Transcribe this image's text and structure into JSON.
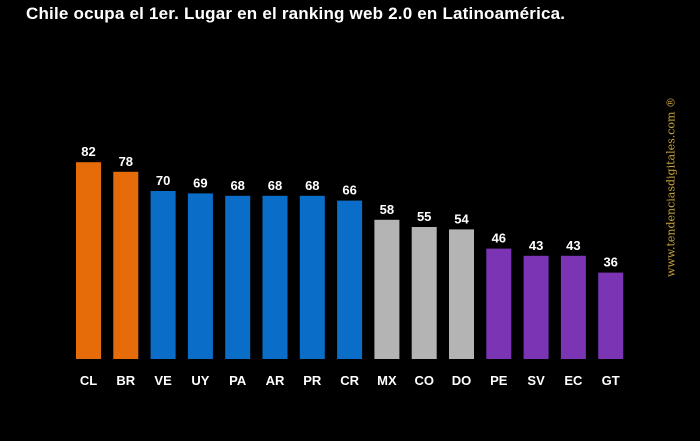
{
  "title": "Chile ocupa el 1er. Lugar en el ranking web 2.0 en Latinoamérica.",
  "watermark": "www.tendenciasdigitales.com ®",
  "chart_data": {
    "type": "bar",
    "title": "Chile ocupa el 1er. Lugar en el ranking web 2.0 en Latinoamérica.",
    "xlabel": "",
    "ylabel": "",
    "ylim": [
      0,
      100
    ],
    "grid": false,
    "legend": "none",
    "categories": [
      "CL",
      "BR",
      "VE",
      "UY",
      "PA",
      "AR",
      "PR",
      "CR",
      "MX",
      "CO",
      "DO",
      "PE",
      "SV",
      "EC",
      "GT"
    ],
    "values": [
      82,
      78,
      70,
      69,
      68,
      68,
      68,
      66,
      58,
      55,
      54,
      46,
      43,
      43,
      36
    ],
    "colors": [
      "#e66c0a",
      "#e66c0a",
      "#0a6ec8",
      "#0a6ec8",
      "#0a6ec8",
      "#0a6ec8",
      "#0a6ec8",
      "#0a6ec8",
      "#b4b4b4",
      "#b4b4b4",
      "#b4b4b4",
      "#7a34b4",
      "#7a34b4",
      "#7a34b4",
      "#7a34b4"
    ]
  }
}
